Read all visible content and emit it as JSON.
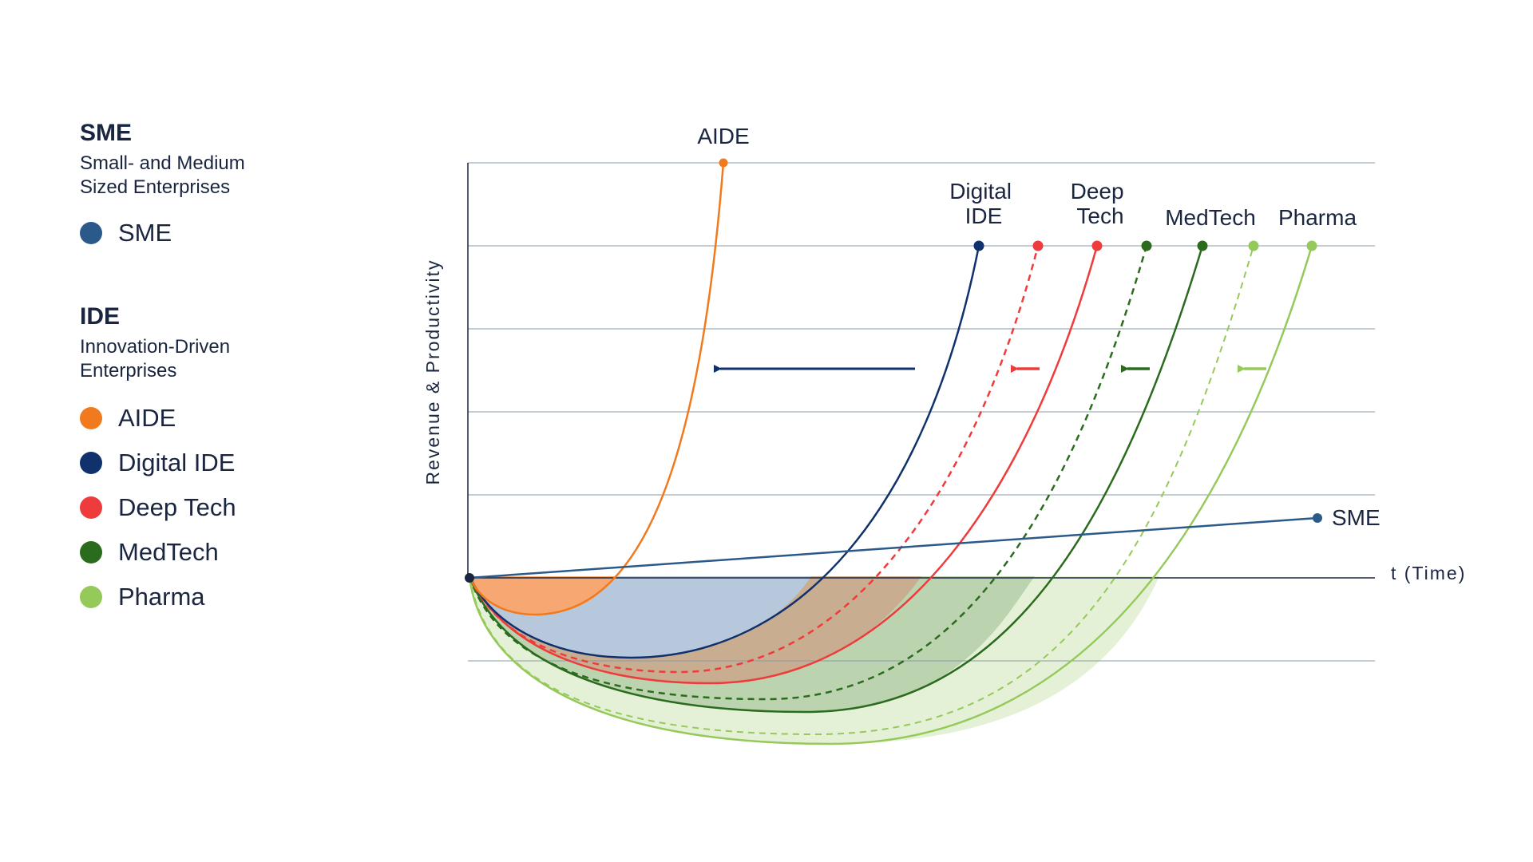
{
  "legend": {
    "sme_group": {
      "title": "SME",
      "subtitle": "Small- and Medium Sized Enterprises",
      "items": [
        {
          "label": "SME",
          "color": "#2b5a8a"
        }
      ]
    },
    "ide_group": {
      "title": "IDE",
      "subtitle": "Innovation-Driven Enterprises",
      "items": [
        {
          "label": "AIDE",
          "color": "#f07a1d"
        },
        {
          "label": "Digital IDE",
          "color": "#10316b"
        },
        {
          "label": "Deep Tech",
          "color": "#ee3b3b"
        },
        {
          "label": "MedTech",
          "color": "#2a6b1e"
        },
        {
          "label": "Pharma",
          "color": "#95c95a"
        }
      ]
    }
  },
  "axes": {
    "y_label": "Revenue & Productivity",
    "x_label": "t (Time)"
  },
  "curve_labels": {
    "aide": "AIDE",
    "digital_ide": [
      "Digital",
      "IDE"
    ],
    "deep_tech": [
      "Deep",
      "Tech"
    ],
    "medtech": "MedTech",
    "pharma": "Pharma",
    "sme": "SME"
  },
  "colors": {
    "sme": "#2b5a8a",
    "aide": "#f07a1d",
    "digital_ide": "#10316b",
    "deep_tech": "#ee3b3b",
    "medtech": "#2a6b1e",
    "pharma": "#95c95a",
    "grid": "#8a9aa8",
    "axis": "#1a2540"
  }
}
